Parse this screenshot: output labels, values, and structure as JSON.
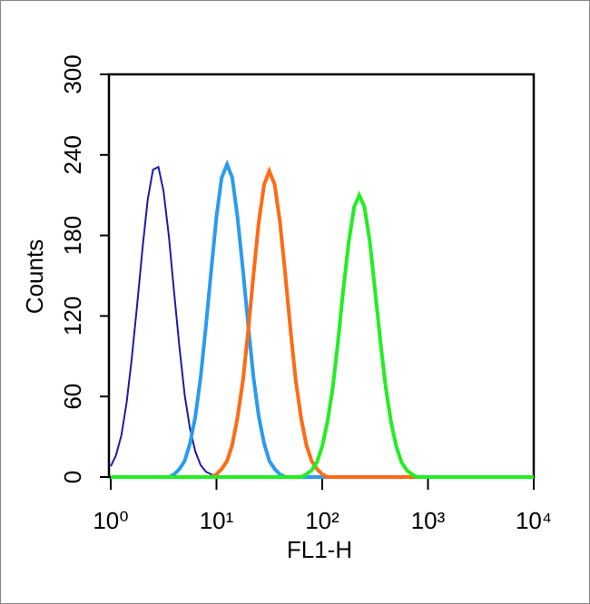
{
  "chart_data": {
    "type": "line",
    "xlabel": "FL1-H",
    "ylabel": "Counts",
    "xscale": "log",
    "xlim": [
      1,
      10000
    ],
    "xticks": [
      {
        "value": 1,
        "label": "10⁰"
      },
      {
        "value": 10,
        "label": "10¹"
      },
      {
        "value": 100,
        "label": "10²"
      },
      {
        "value": 1000,
        "label": "10³"
      },
      {
        "value": 10000,
        "label": "10⁴"
      }
    ],
    "ylim": [
      0,
      300
    ],
    "yticks": [
      0,
      60,
      120,
      180,
      240,
      300
    ],
    "x": [
      1,
      1.12,
      1.26,
      1.41,
      1.58,
      1.78,
      2,
      2.24,
      2.51,
      2.82,
      3.16,
      3.55,
      3.98,
      4.47,
      5.01,
      5.62,
      6.31,
      7.08,
      7.94,
      8.91,
      10,
      11.2,
      12.6,
      14.1,
      15.8,
      17.8,
      20,
      22.4,
      25.1,
      28.2,
      31.6,
      35.5,
      39.8,
      44.7,
      50.1,
      56.2,
      63.1,
      70.8,
      79.4,
      89.1,
      100,
      112,
      126,
      141,
      158,
      178,
      200,
      224,
      251,
      282,
      316,
      355,
      398,
      447,
      501,
      562,
      631,
      708,
      794,
      891,
      1000,
      3162,
      10000
    ],
    "series": [
      {
        "color": "#1c1ca8",
        "values": [
          8,
          16,
          31,
          55,
          88,
          129,
          171,
          207,
          229,
          231,
          213,
          179,
          137,
          96,
          61,
          36,
          19,
          9,
          4,
          2,
          0,
          0,
          0,
          0,
          0,
          0,
          0,
          0,
          0,
          0,
          0,
          0,
          0,
          0,
          0,
          0,
          0,
          0,
          0,
          0,
          0,
          0,
          0,
          0,
          0,
          0,
          0,
          0,
          0,
          0,
          0,
          0,
          0,
          0,
          0,
          0,
          0,
          0,
          0,
          0,
          0,
          0,
          0
        ]
      },
      {
        "color": "#2a9bef",
        "values": [
          0,
          0,
          0,
          0,
          0,
          0,
          0,
          0,
          0,
          0,
          0,
          0,
          2,
          6,
          12,
          25,
          45,
          74,
          112,
          154,
          194,
          223,
          233,
          223,
          194,
          154,
          112,
          74,
          45,
          25,
          12,
          6,
          2,
          0,
          0,
          0,
          0,
          0,
          0,
          0,
          0,
          0,
          0,
          0,
          0,
          0,
          0,
          0,
          0,
          0,
          0,
          0,
          0,
          0,
          0,
          0,
          0,
          0,
          0,
          0,
          0,
          0,
          0
        ]
      },
      {
        "color": "#ff6a14",
        "values": [
          0,
          0,
          0,
          0,
          0,
          0,
          0,
          0,
          0,
          0,
          0,
          0,
          0,
          0,
          0,
          0,
          0,
          0,
          0,
          0,
          2,
          6,
          12,
          24,
          44,
          72,
          110,
          151,
          190,
          218,
          228,
          218,
          190,
          151,
          110,
          72,
          44,
          24,
          12,
          6,
          2,
          0,
          0,
          0,
          0,
          0,
          0,
          0,
          0,
          0,
          0,
          0,
          0,
          0,
          0,
          0,
          0,
          0,
          0,
          0,
          0,
          0,
          0
        ]
      },
      {
        "color": "#22ee22",
        "values": [
          0,
          0,
          0,
          0,
          0,
          0,
          0,
          0,
          0,
          0,
          0,
          0,
          0,
          0,
          0,
          0,
          0,
          0,
          0,
          0,
          0,
          0,
          0,
          0,
          0,
          0,
          0,
          0,
          0,
          0,
          0,
          0,
          0,
          0,
          0,
          0,
          0,
          2,
          5,
          11,
          23,
          41,
          67,
          101,
          139,
          175,
          201,
          210,
          201,
          175,
          139,
          101,
          67,
          41,
          23,
          11,
          5,
          2,
          0,
          0,
          0,
          0,
          0
        ]
      }
    ]
  }
}
